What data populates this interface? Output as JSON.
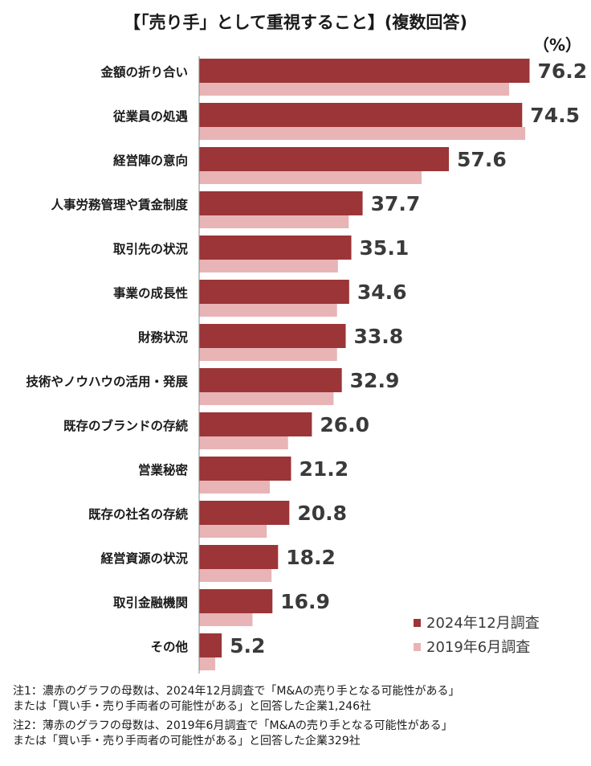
{
  "title": "【「売り手」として重視すること】(複数回答)",
  "unit": "（%）",
  "colors": {
    "series2024": "#9b3537",
    "series2019": "#e8b4b6"
  },
  "chart_data": {
    "type": "bar",
    "orientation": "horizontal",
    "categories": [
      "金額の折り合い",
      "従業員の処遇",
      "経営陣の意向",
      "人事労務管理や賃金制度",
      "取引先の状況",
      "事業の成長性",
      "財務状況",
      "技術やノウハウの活用・発展",
      "既存のブランドの存続",
      "営業秘密",
      "既存の社名の存続",
      "経営資源の状況",
      "取引金融機関",
      "その他"
    ],
    "series": [
      {
        "name": "2024年12月調査",
        "values": [
          76.2,
          74.5,
          57.6,
          37.7,
          35.1,
          34.6,
          33.8,
          32.9,
          26.0,
          21.2,
          20.8,
          18.2,
          16.9,
          5.2
        ],
        "labels": [
          "76.2",
          "74.5",
          "57.6",
          "37.7",
          "35.1",
          "34.6",
          "33.8",
          "32.9",
          "26.0",
          "21.2",
          "20.8",
          "18.2",
          "16.9",
          "5.2"
        ]
      },
      {
        "name": "2019年6月調査",
        "values": [
          71.5,
          75.2,
          51.3,
          34.5,
          32.0,
          31.8,
          31.8,
          31.0,
          20.5,
          16.3,
          15.6,
          16.7,
          12.3,
          3.7
        ]
      }
    ],
    "xlim": [
      0,
      80
    ],
    "legend": "bottom-right"
  },
  "notes": [
    [
      "注1：濃赤のグラフの母数は、2024年12月調査で「M&Aの売り手となる可能性がある」",
      "または「買い手・売り手両者の可能性がある」と回答した企業1,246社"
    ],
    [
      "注2：薄赤のグラフの母数は、2019年6月調査で「M&Aの売り手となる可能性がある」",
      "または「買い手・売り手両者の可能性がある」と回答した企業329社"
    ]
  ]
}
